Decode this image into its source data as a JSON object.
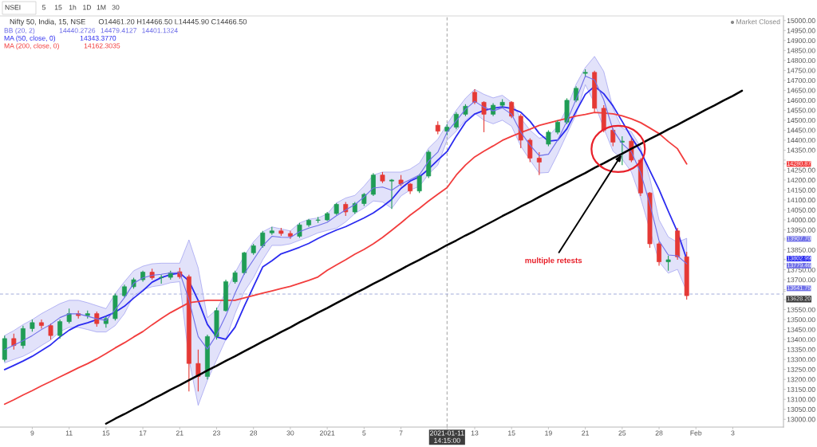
{
  "chart_data": {
    "type": "candlestick",
    "title": "Nifty 50, India, 15, NSE",
    "subtitle": "O14461.20 H14466.50 L14445.90 C14466.50",
    "annotations": [
      "14440.2726",
      "14479.4127",
      "14401.1324",
      "14343.3770",
      "14162.3035",
      "NSEI",
      "5",
      "15",
      "1h",
      "1D",
      "1M",
      "30",
      "Market Closed",
      {
        "text": "multiple retests",
        "x": "25",
        "y": 14332
      }
    ],
    "legend": "top left",
    "categories": [
      null,
      null,
      null,
      "9",
      null,
      null,
      null,
      "11",
      null,
      null,
      null,
      "15",
      null,
      null,
      null,
      "17",
      null,
      null,
      null,
      "21",
      null,
      null,
      null,
      "23",
      null,
      null,
      null,
      "28",
      null,
      null,
      null,
      "30",
      null,
      null,
      null,
      "2021",
      null,
      null,
      null,
      "5",
      null,
      null,
      null,
      "7",
      null,
      null,
      null,
      null,
      "2021-01-11 14:15:00",
      null,
      null,
      "13",
      null,
      null,
      null,
      "15",
      null,
      null,
      null,
      "19",
      null,
      null,
      null,
      "21",
      null,
      null,
      null,
      "25",
      null,
      null,
      null,
      "28",
      null,
      null,
      null,
      "Feb",
      null,
      null,
      null,
      "3",
      null,
      null,
      null,
      null,
      null
    ],
    "ylim": [
      12961,
      15023
    ],
    "yticks": [
      {
        "value": 13000,
        "label": "13000.00"
      },
      {
        "value": 13050,
        "label": "13050.00"
      },
      {
        "value": 13100,
        "label": "13100.00"
      },
      {
        "value": 13150,
        "label": "13150.00"
      },
      {
        "value": 13200,
        "label": "13200.00"
      },
      {
        "value": 13250,
        "label": "13250.00"
      },
      {
        "value": 13300,
        "label": "13300.00"
      },
      {
        "value": 13350,
        "label": "13350.00"
      },
      {
        "value": 13400,
        "label": "13400.00"
      },
      {
        "value": 13450,
        "label": "13450.00"
      },
      {
        "value": 13500,
        "label": "13500.00"
      },
      {
        "value": 13550,
        "label": "13550.00"
      },
      {
        "value": 13600,
        "label": null
      },
      {
        "value": 13650,
        "label": null
      },
      {
        "value": 13700,
        "label": "13700.00"
      },
      {
        "value": 13750,
        "label": "13750.00"
      },
      {
        "value": 13800,
        "label": null
      },
      {
        "value": 13850,
        "label": "13850.00"
      },
      {
        "value": 13900,
        "label": null
      },
      {
        "value": 13950,
        "label": "13950.00"
      },
      {
        "value": 14000,
        "label": "14000.00"
      },
      {
        "value": 14050,
        "label": "14050.00"
      },
      {
        "value": 14100,
        "label": "14100.00"
      },
      {
        "value": 14150,
        "label": "14150.00"
      },
      {
        "value": 14200,
        "label": "14200.00"
      },
      {
        "value": 14250,
        "label": "14250.00"
      },
      {
        "value": 14300,
        "label": null
      },
      {
        "value": 14350,
        "label": "14350.00"
      },
      {
        "value": 14400,
        "label": "14400.00"
      },
      {
        "value": 14450,
        "label": "14450.00"
      },
      {
        "value": 14500,
        "label": "14500.00"
      },
      {
        "value": 14550,
        "label": "14550.00"
      },
      {
        "value": 14600,
        "label": "14600.00"
      },
      {
        "value": 14650,
        "label": "14650.00"
      },
      {
        "value": 14700,
        "label": "14700.00"
      },
      {
        "value": 14750,
        "label": "14750.00"
      },
      {
        "value": 14800,
        "label": "14800.00"
      },
      {
        "value": 14850,
        "label": "14850.00"
      },
      {
        "value": 14900,
        "label": "14900.00"
      },
      {
        "value": 14950,
        "label": "14950.00"
      },
      {
        "value": 15000,
        "label": "15000.00"
      },
      {
        "value": 14280.87,
        "label": "14280.87"
      },
      {
        "value": 13907.7,
        "label": "13907.70"
      },
      {
        "value": 13802.99,
        "label": "13802.99"
      },
      {
        "value": 13779.46,
        "label": "13779.46"
      },
      {
        "value": 13641.75,
        "label": "13641.75"
      }
    ],
    "ref_lines": [
      {
        "axis": "x",
        "value": "2021-01-11 14:15:00",
        "color": "#9e9e9e",
        "line_style": "dashed"
      },
      {
        "axis": "y",
        "value": 13628.2,
        "label": "13628.20",
        "color": "#9fa8da",
        "line_style": "dashed"
      }
    ],
    "series": [
      {
        "name": "BB (20, 2)",
        "type": "line",
        "color": "#6f6fe8",
        "values": [
          13350,
          13372,
          13395,
          13420,
          13450,
          13476,
          13510,
          13529,
          13529,
          13517,
          13504,
          13496,
          13550,
          13610,
          13682,
          13709,
          13722,
          13727,
          13734,
          13736,
          13600,
          13415,
          13352,
          13424,
          13520,
          13632,
          13730,
          13800,
          13870,
          13918,
          13913,
          13912,
          13941,
          13959,
          13972,
          13988,
          14021,
          14050,
          14077,
          14115,
          14160,
          14165,
          14149,
          14180,
          14202,
          14226,
          14295,
          14340,
          14440,
          14497,
          14555,
          14595,
          14565,
          14547,
          14562,
          14530,
          14440,
          14375,
          14322,
          14329,
          14400,
          14495,
          14605,
          14721,
          14702,
          14602,
          14452,
          14382,
          14341,
          14237,
          14080,
          13895,
          13824,
          13820,
          13779.46,
          null,
          null,
          null,
          null,
          null,
          null,
          null,
          null,
          null,
          null
        ],
        "lower": [
          13283,
          13300,
          13316,
          13340,
          13370,
          13398,
          13440,
          13461,
          13461,
          13450,
          13438,
          13438,
          13470,
          13530,
          13620,
          13650,
          13665,
          13672,
          13685,
          13690,
          13300,
          13070,
          13195,
          13298,
          13400,
          13530,
          13640,
          13710,
          13800,
          13872,
          13872,
          13880,
          13898,
          13915,
          13935,
          13947,
          13958,
          13990,
          14032,
          14060,
          14095,
          14090,
          14058,
          14120,
          14150,
          14168,
          14230,
          14275,
          14400,
          14445,
          14500,
          14535,
          14500,
          14482,
          14500,
          14470,
          14370,
          14300,
          14235,
          14238,
          14330,
          14430,
          14530,
          14678,
          14585,
          14460,
          14345,
          14305,
          14240,
          14110,
          13950,
          13790,
          13733,
          13752,
          13641.75,
          null,
          null,
          null,
          null,
          null,
          null,
          null,
          null,
          null,
          null
        ],
        "upper": [
          13420,
          13445,
          13475,
          13500,
          13530,
          13555,
          13580,
          13597,
          13597,
          13585,
          13570,
          13555,
          13630,
          13690,
          13745,
          13768,
          13780,
          13783,
          13783,
          13783,
          13900,
          13760,
          13510,
          13550,
          13640,
          13735,
          13820,
          13890,
          13940,
          13965,
          13955,
          13945,
          13985,
          14003,
          14010,
          14030,
          14085,
          14110,
          14123,
          14170,
          14225,
          14240,
          14240,
          14240,
          14255,
          14285,
          14360,
          14405,
          14480,
          14550,
          14610,
          14655,
          14630,
          14612,
          14625,
          14590,
          14510,
          14450,
          14410,
          14420,
          14470,
          14560,
          14680,
          14764,
          14820,
          14745,
          14560,
          14460,
          14442,
          14365,
          14210,
          14000,
          13915,
          13888,
          13907.7,
          null,
          null,
          null,
          null,
          null,
          null,
          null,
          null,
          null,
          null
        ]
      },
      {
        "name": "MA (50, close, 0)",
        "type": "line",
        "color": "#2b2bf0",
        "values": [
          13249,
          13270,
          13292,
          13316,
          13345,
          13374,
          13413,
          13447,
          13471,
          13484,
          13500,
          13517,
          13537,
          13567,
          13608,
          13645,
          13688,
          13711,
          13726,
          13734,
          13694,
          13596,
          13476,
          13413,
          13401,
          13462,
          13567,
          13666,
          13764,
          13795,
          13830,
          13846,
          13863,
          13882,
          13907,
          13929,
          13949,
          13966,
          13988,
          14010,
          14035,
          14067,
          14103,
          14158,
          14195,
          14216,
          14255,
          14300,
          14343,
          14420,
          14490,
          14531,
          14549,
          14560,
          14567,
          14559,
          14540,
          14495,
          14434,
          14395,
          14400,
          14457,
          14545,
          14630,
          14670,
          14633,
          14572,
          14494,
          14414,
          14344,
          14247,
          14152,
          14044,
          13940,
          13802.99,
          null,
          null,
          null,
          null,
          null,
          null,
          null,
          null,
          null,
          null
        ]
      },
      {
        "name": "MA (200, close, 0)",
        "type": "line",
        "color": "#f23d3d",
        "values": [
          13076,
          13098,
          13122,
          13144,
          13168,
          13190,
          13213,
          13235,
          13258,
          13279,
          13303,
          13330,
          13358,
          13384,
          13413,
          13440,
          13474,
          13505,
          13535,
          13560,
          13585,
          13591,
          13597,
          13597,
          13597,
          13597,
          13609,
          13621,
          13633,
          13644,
          13656,
          13667,
          13682,
          13697,
          13714,
          13747,
          13774,
          13800,
          13828,
          13852,
          13880,
          13912,
          13948,
          13985,
          14024,
          14058,
          14095,
          14129,
          14162,
          14225,
          14275,
          14316,
          14345,
          14371,
          14399,
          14419,
          14438,
          14455,
          14474,
          14486,
          14498,
          14509,
          14521,
          14529,
          14539,
          14536,
          14532,
          14522,
          14507,
          14488,
          14461,
          14433,
          14393,
          14357,
          14280.87,
          null,
          null,
          null,
          null,
          null,
          null,
          null,
          null,
          null,
          null
        ]
      },
      {
        "ohlc": [
          [
            13300,
            13420,
            13290,
            13405
          ],
          [
            13405,
            13430,
            13350,
            13370
          ],
          [
            13370,
            13470,
            13355,
            13455
          ],
          [
            13455,
            13500,
            13440,
            13485
          ],
          [
            13485,
            13500,
            13455,
            13470
          ],
          [
            13470,
            13480,
            13400,
            13420
          ],
          [
            13420,
            13500,
            13405,
            13490
          ],
          [
            13490,
            13555,
            13480,
            13530
          ],
          [
            13530,
            13545,
            13505,
            13520
          ],
          [
            13520,
            13545,
            13505,
            13530
          ],
          [
            13530,
            13540,
            13465,
            13480
          ],
          [
            13480,
            13515,
            13460,
            13505
          ],
          [
            13505,
            13630,
            13495,
            13620
          ],
          [
            13620,
            13675,
            13610,
            13665
          ],
          [
            13665,
            13710,
            13655,
            13700
          ],
          [
            13700,
            13745,
            13690,
            13738
          ],
          [
            13738,
            13755,
            13700,
            13710
          ],
          [
            13710,
            13725,
            13680,
            13712
          ],
          [
            13712,
            13745,
            13700,
            13735
          ],
          [
            13740,
            13760,
            13705,
            13715
          ],
          [
            13715,
            13725,
            13140,
            13280
          ],
          [
            13280,
            13350,
            13140,
            13215
          ],
          [
            13215,
            13425,
            13200,
            13415
          ],
          [
            13415,
            13560,
            13400,
            13545
          ],
          [
            13545,
            13700,
            13540,
            13690
          ],
          [
            13690,
            13745,
            13680,
            13735
          ],
          [
            13735,
            13840,
            13725,
            13835
          ],
          [
            13835,
            13880,
            13825,
            13870
          ],
          [
            13870,
            13945,
            13860,
            13935
          ],
          [
            13935,
            13965,
            13925,
            13945
          ],
          [
            13945,
            13960,
            13920,
            13932
          ],
          [
            13932,
            13945,
            13905,
            13918
          ],
          [
            13918,
            13985,
            13910,
            13975
          ],
          [
            13975,
            14005,
            13965,
            13998
          ],
          [
            13998,
            14015,
            13985,
            14000
          ],
          [
            14000,
            14040,
            13995,
            14032
          ],
          [
            14032,
            14085,
            14025,
            14078
          ],
          [
            14078,
            14090,
            14020,
            14040
          ],
          [
            14040,
            14090,
            14030,
            14082
          ],
          [
            14082,
            14135,
            14070,
            14128
          ],
          [
            14128,
            14235,
            14120,
            14225
          ],
          [
            14225,
            14240,
            14185,
            14195
          ],
          [
            14195,
            14205,
            14055,
            14200
          ],
          [
            14200,
            14225,
            14170,
            14180
          ],
          [
            14180,
            14185,
            14130,
            14145
          ],
          [
            14145,
            14230,
            14135,
            14220
          ],
          [
            14220,
            14350,
            14210,
            14340
          ],
          [
            14475,
            14495,
            14430,
            14445
          ],
          [
            14445,
            14480,
            14425,
            14465
          ],
          [
            14465,
            14540,
            14455,
            14530
          ],
          [
            14530,
            14580,
            14520,
            14570
          ],
          [
            14640,
            14655,
            14580,
            14590
          ],
          [
            14590,
            14595,
            14440,
            14530
          ],
          [
            14530,
            14585,
            14520,
            14575
          ],
          [
            14575,
            14605,
            14560,
            14590
          ],
          [
            14590,
            14595,
            14510,
            14520
          ],
          [
            14520,
            14530,
            14360,
            14400
          ],
          [
            14400,
            14410,
            14290,
            14310
          ],
          [
            14310,
            14340,
            14225,
            14290
          ],
          [
            14380,
            14450,
            14370,
            14440
          ],
          [
            14440,
            14500,
            14430,
            14490
          ],
          [
            14490,
            14610,
            14480,
            14600
          ],
          [
            14600,
            14670,
            14590,
            14660
          ],
          [
            14735,
            14755,
            14715,
            14740
          ],
          [
            14740,
            14748,
            14540,
            14560
          ],
          [
            14560,
            14575,
            14440,
            14450
          ],
          [
            14450,
            14460,
            14370,
            14390
          ],
          [
            14390,
            14420,
            14275,
            14395
          ],
          [
            14395,
            14410,
            14290,
            14300
          ],
          [
            14300,
            14310,
            14120,
            14135
          ],
          [
            14135,
            14140,
            13860,
            13880
          ],
          [
            13880,
            13890,
            13770,
            13790
          ],
          [
            13790,
            13820,
            13745,
            13800
          ],
          [
            13945,
            13960,
            13800,
            13815
          ],
          [
            13815,
            13840,
            13600,
            13620
          ],
          null,
          null,
          null,
          null,
          null,
          null,
          null,
          null,
          null,
          null
        ],
        "colors": [
          "#1f9d55",
          "#e53935",
          "#1f9d55",
          "#1f9d55",
          "#e53935",
          "#e53935",
          "#1f9d55",
          "#1f9d55",
          "#e53935",
          "#1f9d55",
          "#e53935",
          "#1f9d55",
          "#1f9d55",
          "#1f9d55",
          "#1f9d55",
          "#1f9d55",
          "#e53935",
          "#1f9d55",
          "#1f9d55",
          "#e53935",
          "#e53935",
          "#e53935",
          "#1f9d55",
          "#1f9d55",
          "#1f9d55",
          "#1f9d55",
          "#1f9d55",
          "#1f9d55",
          "#1f9d55",
          "#1f9d55",
          "#e53935",
          "#e53935",
          "#1f9d55",
          "#1f9d55",
          "#1f9d55",
          "#1f9d55",
          "#1f9d55",
          "#e53935",
          "#1f9d55",
          "#1f9d55",
          "#1f9d55",
          "#e53935",
          "#1f9d55",
          "#e53935",
          "#e53935",
          "#1f9d55",
          "#1f9d55",
          "#e53935",
          "#1f9d55",
          "#1f9d55",
          "#1f9d55",
          "#e53935",
          "#e53935",
          "#1f9d55",
          "#1f9d55",
          "#e53935",
          "#e53935",
          "#e53935",
          "#e53935",
          "#1f9d55",
          "#1f9d55",
          "#1f9d55",
          "#1f9d55",
          "#1f9d55",
          "#e53935",
          "#e53935",
          "#e53935",
          "#1f9d55",
          "#e53935",
          "#e53935",
          "#e53935",
          "#e53935",
          "#1f9d55",
          "#e53935",
          "#e53935",
          null,
          null,
          null,
          null,
          null,
          null,
          null,
          null,
          null,
          null
        ]
      },
      {
        "type": "line",
        "color": "#000000",
        "values": [
          null,
          null,
          null,
          null,
          null,
          null,
          null,
          null,
          null,
          null,
          null,
          12978,
          13003,
          13026,
          13051,
          13074,
          13100,
          13123,
          13148,
          13171,
          13196,
          13220,
          13245,
          13268,
          13293,
          13316,
          13341,
          13365,
          13390,
          13413,
          13438,
          13461,
          13487,
          13510,
          13535,
          13558,
          13583,
          13607,
          13632,
          13655,
          13680,
          13703,
          13728,
          13752,
          13777,
          13800,
          13825,
          13848,
          13874,
          13897,
          13922,
          13945,
          13970,
          13994,
          14019,
          14042,
          14067,
          14090,
          14115,
          14139,
          14164,
          14187,
          14212,
          14235,
          14261,
          14284,
          14309,
          14332,
          14357,
          14381,
          14406,
          14429,
          14454,
          14477,
          14502,
          14526,
          14551,
          14574,
          14599,
          14622,
          14648,
          null,
          null,
          null,
          null
        ]
      }
    ]
  }
}
